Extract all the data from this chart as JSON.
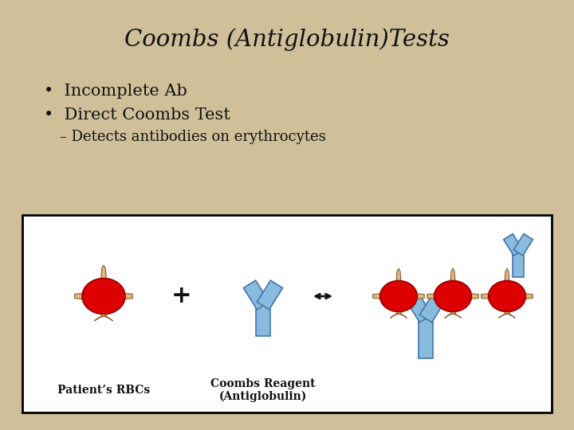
{
  "title": "Coombs (Antiglobulin)Tests",
  "bullet1": "Incomplete Ab",
  "bullet2": "Direct Coombs Test",
  "sub_bullet": "– Detects antibodies on erythrocytes",
  "label1": "Patient’s RBCs",
  "label2": "Coombs Reagent\n(Antiglobulin)",
  "bg_color": "#cfc09a",
  "box_bg": "#ffffff",
  "rbc_color": "#dd0000",
  "rbc_edge": "#990000",
  "arm_color": "#ddb882",
  "arm_edge": "#8b6030",
  "Y_fill": "#88bbdd",
  "Y_edge": "#4477aa",
  "text_color": "#111111",
  "title_fontsize": 21,
  "bullet_fontsize": 15,
  "sub_fontsize": 13,
  "label_fontsize": 10
}
